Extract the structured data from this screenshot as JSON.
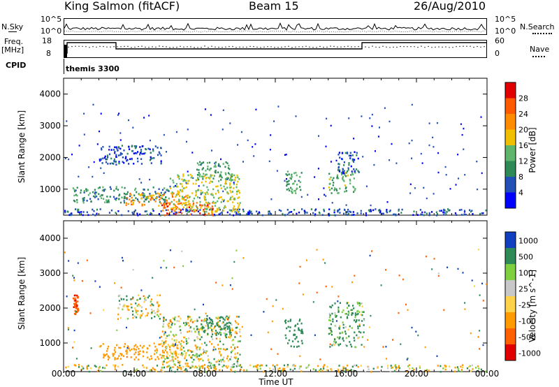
{
  "header": {
    "title": "King Salmon (fitACF)",
    "beam": "Beam 15",
    "date": "26/Aug/2010"
  },
  "status_panels": {
    "nsky_label": "N.Sky",
    "nsearch_label": "N.Search",
    "count_ticks": [
      "10^5",
      "10^0"
    ],
    "freq_label_line1": "Freq.",
    "freq_label_line2": "[MHz]",
    "freq_ticks": [
      "18",
      "8"
    ],
    "nave_label": "Nave",
    "nave_ticks": [
      "60",
      "0"
    ],
    "cpid_label": "CPID",
    "cpid_value": "themis 3300"
  },
  "colors": {
    "power_scale": [
      "#0000ff",
      "#2050b8",
      "#2e8b57",
      "#5fb56b",
      "#f0c000",
      "#ff8c00",
      "#ff5a00",
      "#e00000"
    ],
    "velocity_scale": [
      "#1040c0",
      "#2e8b57",
      "#7fd040",
      "#c8c8c8",
      "#ffd24a",
      "#ff9a00",
      "#ff6000",
      "#e00000"
    ]
  },
  "chart_data": [
    {
      "type": "heatmap",
      "title": "",
      "xlabel": "",
      "ylabel": "Slant Range [km]",
      "x_ticks": [
        "00:00",
        "04:00",
        "08:00",
        "12:00",
        "16:00",
        "20:00",
        "00:00"
      ],
      "y_ticks": [
        "1000",
        "2000",
        "3000",
        "4000"
      ],
      "ylim": [
        180,
        4500
      ],
      "colorbar": {
        "label": "Power [dB]",
        "ticks": [
          "4",
          "8",
          "12",
          "16",
          "20",
          "24",
          "28"
        ],
        "range": [
          0,
          32
        ]
      },
      "regions": [
        {
          "t": [
            0.0,
            24.0
          ],
          "r": [
            200,
            400
          ],
          "value": 6
        },
        {
          "t": [
            0.5,
            6.0
          ],
          "r": [
            600,
            1100
          ],
          "value": 10
        },
        {
          "t": [
            3.5,
            7.0
          ],
          "r": [
            500,
            900
          ],
          "value": 22
        },
        {
          "t": [
            5.5,
            8.5
          ],
          "r": [
            200,
            600
          ],
          "value": 26
        },
        {
          "t": [
            6.0,
            10.0
          ],
          "r": [
            300,
            1500
          ],
          "value": 16
        },
        {
          "t": [
            2.0,
            5.5
          ],
          "r": [
            1800,
            2400
          ],
          "value": 6
        },
        {
          "t": [
            7.5,
            9.5
          ],
          "r": [
            1300,
            1900
          ],
          "value": 12
        },
        {
          "t": [
            12.5,
            13.5
          ],
          "r": [
            900,
            1600
          ],
          "value": 12
        },
        {
          "t": [
            15.0,
            16.5
          ],
          "r": [
            900,
            1600
          ],
          "value": 13
        },
        {
          "t": [
            15.5,
            16.8
          ],
          "r": [
            1500,
            2200
          ],
          "value": 6
        }
      ]
    },
    {
      "type": "heatmap",
      "title": "",
      "xlabel": "Time UT",
      "ylabel": "Slant Range [km]",
      "x_ticks": [
        "00:00",
        "04:00",
        "08:00",
        "12:00",
        "16:00",
        "20:00",
        "00:00"
      ],
      "y_ticks": [
        "1000",
        "2000",
        "3000",
        "4000"
      ],
      "ylim": [
        180,
        4500
      ],
      "colorbar": {
        "label": "Velocity [m s^-1]",
        "ticks": [
          "1000",
          "500",
          "100",
          "25",
          "-25",
          "-100",
          "-500",
          "-1000"
        ],
        "range": [
          -1200,
          1200
        ]
      },
      "regions": [
        {
          "t": [
            0.0,
            24.0
          ],
          "r": [
            200,
            400
          ],
          "value": -30
        },
        {
          "t": [
            2.0,
            6.5
          ],
          "r": [
            550,
            1000
          ],
          "value": -300
        },
        {
          "t": [
            5.5,
            10.0
          ],
          "r": [
            300,
            1800
          ],
          "value": 0
        },
        {
          "t": [
            3.0,
            5.5
          ],
          "r": [
            1700,
            2400
          ],
          "value": 0
        },
        {
          "t": [
            7.5,
            9.5
          ],
          "r": [
            1200,
            1800
          ],
          "value": 300
        },
        {
          "t": [
            12.5,
            13.5
          ],
          "r": [
            900,
            1700
          ],
          "value": 300
        },
        {
          "t": [
            15.0,
            17.0
          ],
          "r": [
            900,
            2200
          ],
          "value": 150
        },
        {
          "t": [
            0.5,
            0.8
          ],
          "r": [
            1800,
            2400
          ],
          "value": -900
        }
      ]
    }
  ]
}
